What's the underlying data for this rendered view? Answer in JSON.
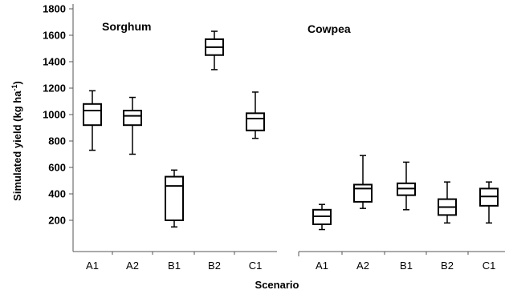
{
  "chart_data": {
    "type": "box",
    "ylabel": "Simulated  yield (kg ha",
    "ylabel_sup": "-1",
    "ylabel_close": ")",
    "xlabel": "Scenario",
    "ylim": [
      0,
      1800
    ],
    "yticks": [
      200,
      400,
      600,
      800,
      1000,
      1200,
      1400,
      1600,
      1800
    ],
    "grid": false,
    "colors": {
      "box_stroke": "#000000",
      "box_fill": "#ffffff",
      "axis": "#555555"
    },
    "groups": [
      {
        "name": "Sorghum",
        "categories": [
          "A1",
          "A2",
          "B1",
          "B2",
          "C1"
        ],
        "boxes": [
          {
            "min": 730,
            "q1": 920,
            "median": 1030,
            "q3": 1080,
            "max": 1180
          },
          {
            "min": 700,
            "q1": 920,
            "median": 990,
            "q3": 1030,
            "max": 1130
          },
          {
            "min": 150,
            "q1": 200,
            "median": 460,
            "q3": 530,
            "max": 580
          },
          {
            "min": 1340,
            "q1": 1450,
            "median": 1510,
            "q3": 1570,
            "max": 1630
          },
          {
            "min": 820,
            "q1": 880,
            "median": 970,
            "q3": 1010,
            "max": 1170
          }
        ]
      },
      {
        "name": "Cowpea",
        "categories": [
          "A1",
          "A2",
          "B1",
          "B2",
          "C1"
        ],
        "boxes": [
          {
            "min": 130,
            "q1": 170,
            "median": 230,
            "q3": 280,
            "max": 320
          },
          {
            "min": 290,
            "q1": 340,
            "median": 440,
            "q3": 470,
            "max": 690
          },
          {
            "min": 280,
            "q1": 390,
            "median": 440,
            "q3": 480,
            "max": 640
          },
          {
            "min": 180,
            "q1": 240,
            "median": 300,
            "q3": 360,
            "max": 490
          },
          {
            "min": 180,
            "q1": 310,
            "median": 380,
            "q3": 440,
            "max": 490
          }
        ]
      }
    ]
  }
}
